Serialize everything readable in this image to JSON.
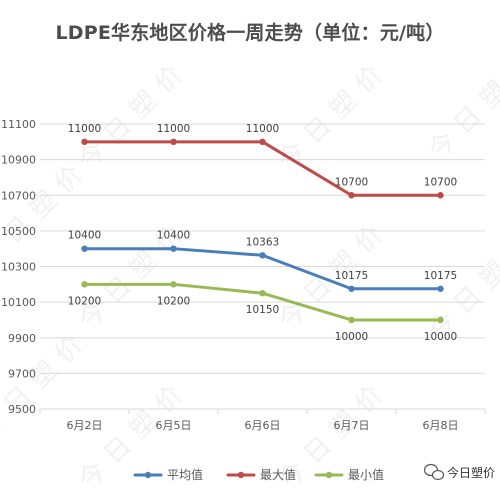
{
  "chart_data": {
    "type": "line",
    "title": "LDPE华东地区价格一周走势（单位：元/吨）",
    "categories": [
      "6月2日",
      "6月5日",
      "6月6日",
      "6月7日",
      "6月8日"
    ],
    "series": [
      {
        "name": "平均值",
        "color": "#4a7ebb",
        "values": [
          10400,
          10400,
          10363,
          10175,
          10175
        ],
        "labels": [
          "10400",
          "10400",
          "10363",
          "10175",
          "10175"
        ],
        "label_position": "above"
      },
      {
        "name": "最大值",
        "color": "#be4b48",
        "values": [
          11000,
          11000,
          11000,
          10700,
          10700
        ],
        "labels": [
          "11000",
          "11000",
          "11000",
          "10700",
          "10700"
        ],
        "label_position": "above"
      },
      {
        "name": "最小值",
        "color": "#98b954",
        "values": [
          10200,
          10200,
          10150,
          10000,
          10000
        ],
        "labels": [
          "10200",
          "10200",
          "10150",
          "10000",
          "10000"
        ],
        "label_position": "below"
      }
    ],
    "y_ticks": [
      "9500",
      "9700",
      "9900",
      "10100",
      "10300",
      "10500",
      "10700",
      "10900",
      "11100"
    ],
    "ylim": [
      9500,
      11100
    ],
    "grid": "horizontal",
    "legend_placement": "bottom",
    "xlabel": "",
    "ylabel": ""
  },
  "watermark": {
    "text": "今日塑价"
  },
  "logo": {
    "text": "今日塑价",
    "icon": "wechat-icon"
  }
}
